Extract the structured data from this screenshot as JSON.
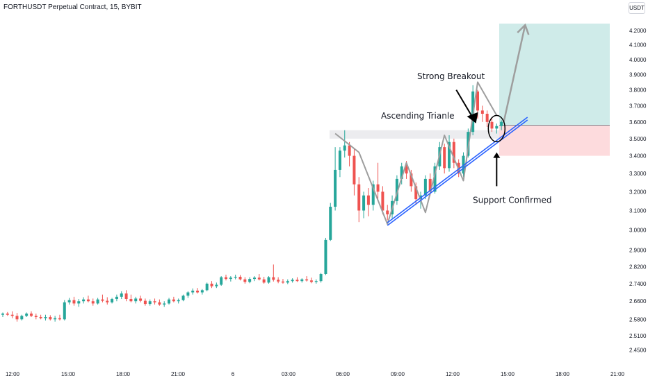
{
  "header": {
    "title": "FORTHUSDT Perpetual Contract, 15, BYBIT",
    "currency": "USDT"
  },
  "colors": {
    "up": "#26a69a",
    "down": "#ef5350",
    "triangle": "#9e9e9e",
    "trendline": "#2962ff",
    "target_zone": "#26a69a",
    "stop_zone": "#f23645",
    "resistance_zone": "#b2b5be"
  },
  "chart_data": {
    "type": "candlestick",
    "symbol": "FORTHUSDT",
    "timeframe": "15",
    "exchange": "BYBIT",
    "x_tick_labels": [
      "12:00",
      "15:00",
      "18:00",
      "21:00",
      "6",
      "03:00",
      "06:00",
      "09:00",
      "12:00",
      "15:00",
      "18:00",
      "21:00"
    ],
    "y_tick_labels": [
      "4.2000",
      "4.1000",
      "4.0000",
      "3.9000",
      "3.8000",
      "3.7000",
      "3.6000",
      "3.5000",
      "3.4000",
      "3.3000",
      "3.2000",
      "3.1000",
      "3.0000",
      "2.9000",
      "2.8200",
      "2.7400",
      "2.6600",
      "2.5800",
      "2.5100",
      "2.4500"
    ],
    "y_scale": "log",
    "ylim": [
      2.42,
      4.28
    ],
    "candles": [
      {
        "o": 2.6,
        "h": 2.61,
        "l": 2.59,
        "c": 2.605
      },
      {
        "o": 2.605,
        "h": 2.612,
        "l": 2.595,
        "c": 2.6
      },
      {
        "o": 2.6,
        "h": 2.615,
        "l": 2.585,
        "c": 2.595
      },
      {
        "o": 2.595,
        "h": 2.608,
        "l": 2.57,
        "c": 2.58
      },
      {
        "o": 2.58,
        "h": 2.6,
        "l": 2.575,
        "c": 2.595
      },
      {
        "o": 2.595,
        "h": 2.61,
        "l": 2.59,
        "c": 2.605
      },
      {
        "o": 2.605,
        "h": 2.615,
        "l": 2.59,
        "c": 2.595
      },
      {
        "o": 2.595,
        "h": 2.605,
        "l": 2.58,
        "c": 2.59
      },
      {
        "o": 2.59,
        "h": 2.6,
        "l": 2.58,
        "c": 2.585
      },
      {
        "o": 2.585,
        "h": 2.6,
        "l": 2.575,
        "c": 2.59
      },
      {
        "o": 2.59,
        "h": 2.598,
        "l": 2.575,
        "c": 2.58
      },
      {
        "o": 2.58,
        "h": 2.595,
        "l": 2.57,
        "c": 2.585
      },
      {
        "o": 2.585,
        "h": 2.6,
        "l": 2.575,
        "c": 2.58
      },
      {
        "o": 2.58,
        "h": 2.665,
        "l": 2.575,
        "c": 2.655
      },
      {
        "o": 2.655,
        "h": 2.675,
        "l": 2.645,
        "c": 2.665
      },
      {
        "o": 2.665,
        "h": 2.68,
        "l": 2.64,
        "c": 2.65
      },
      {
        "o": 2.65,
        "h": 2.67,
        "l": 2.635,
        "c": 2.66
      },
      {
        "o": 2.66,
        "h": 2.678,
        "l": 2.65,
        "c": 2.668
      },
      {
        "o": 2.668,
        "h": 2.685,
        "l": 2.655,
        "c": 2.66
      },
      {
        "o": 2.66,
        "h": 2.672,
        "l": 2.64,
        "c": 2.65
      },
      {
        "o": 2.65,
        "h": 2.675,
        "l": 2.645,
        "c": 2.668
      },
      {
        "o": 2.668,
        "h": 2.69,
        "l": 2.655,
        "c": 2.662
      },
      {
        "o": 2.662,
        "h": 2.678,
        "l": 2.645,
        "c": 2.655
      },
      {
        "o": 2.655,
        "h": 2.675,
        "l": 2.65,
        "c": 2.67
      },
      {
        "o": 2.67,
        "h": 2.69,
        "l": 2.66,
        "c": 2.68
      },
      {
        "o": 2.68,
        "h": 2.705,
        "l": 2.67,
        "c": 2.695
      },
      {
        "o": 2.695,
        "h": 2.71,
        "l": 2.66,
        "c": 2.67
      },
      {
        "o": 2.67,
        "h": 2.69,
        "l": 2.655,
        "c": 2.66
      },
      {
        "o": 2.66,
        "h": 2.68,
        "l": 2.65,
        "c": 2.672
      },
      {
        "o": 2.672,
        "h": 2.685,
        "l": 2.655,
        "c": 2.662
      },
      {
        "o": 2.662,
        "h": 2.672,
        "l": 2.64,
        "c": 2.648
      },
      {
        "o": 2.648,
        "h": 2.668,
        "l": 2.64,
        "c": 2.66
      },
      {
        "o": 2.66,
        "h": 2.672,
        "l": 2.645,
        "c": 2.655
      },
      {
        "o": 2.655,
        "h": 2.668,
        "l": 2.64,
        "c": 2.645
      },
      {
        "o": 2.645,
        "h": 2.66,
        "l": 2.635,
        "c": 2.65
      },
      {
        "o": 2.65,
        "h": 2.675,
        "l": 2.645,
        "c": 2.668
      },
      {
        "o": 2.668,
        "h": 2.68,
        "l": 2.655,
        "c": 2.66
      },
      {
        "o": 2.66,
        "h": 2.672,
        "l": 2.65,
        "c": 2.665
      },
      {
        "o": 2.665,
        "h": 2.69,
        "l": 2.66,
        "c": 2.685
      },
      {
        "o": 2.685,
        "h": 2.705,
        "l": 2.675,
        "c": 2.7
      },
      {
        "o": 2.7,
        "h": 2.718,
        "l": 2.69,
        "c": 2.708
      },
      {
        "o": 2.708,
        "h": 2.72,
        "l": 2.695,
        "c": 2.7
      },
      {
        "o": 2.7,
        "h": 2.715,
        "l": 2.69,
        "c": 2.71
      },
      {
        "o": 2.71,
        "h": 2.745,
        "l": 2.705,
        "c": 2.74
      },
      {
        "o": 2.74,
        "h": 2.752,
        "l": 2.72,
        "c": 2.728
      },
      {
        "o": 2.728,
        "h": 2.745,
        "l": 2.72,
        "c": 2.735
      },
      {
        "o": 2.735,
        "h": 2.775,
        "l": 2.73,
        "c": 2.77
      },
      {
        "o": 2.77,
        "h": 2.782,
        "l": 2.755,
        "c": 2.762
      },
      {
        "o": 2.762,
        "h": 2.775,
        "l": 2.75,
        "c": 2.768
      },
      {
        "o": 2.768,
        "h": 2.782,
        "l": 2.76,
        "c": 2.772
      },
      {
        "o": 2.772,
        "h": 2.78,
        "l": 2.755,
        "c": 2.76
      },
      {
        "o": 2.76,
        "h": 2.77,
        "l": 2.74,
        "c": 2.748
      },
      {
        "o": 2.748,
        "h": 2.77,
        "l": 2.742,
        "c": 2.762
      },
      {
        "o": 2.762,
        "h": 2.775,
        "l": 2.752,
        "c": 2.768
      },
      {
        "o": 2.768,
        "h": 2.785,
        "l": 2.755,
        "c": 2.76
      },
      {
        "o": 2.76,
        "h": 2.772,
        "l": 2.74,
        "c": 2.745
      },
      {
        "o": 2.745,
        "h": 2.775,
        "l": 2.74,
        "c": 2.77
      },
      {
        "o": 2.77,
        "h": 2.83,
        "l": 2.75,
        "c": 2.758
      },
      {
        "o": 2.758,
        "h": 2.77,
        "l": 2.742,
        "c": 2.75
      },
      {
        "o": 2.75,
        "h": 2.762,
        "l": 2.74,
        "c": 2.745
      },
      {
        "o": 2.745,
        "h": 2.76,
        "l": 2.738,
        "c": 2.752
      },
      {
        "o": 2.752,
        "h": 2.765,
        "l": 2.745,
        "c": 2.758
      },
      {
        "o": 2.758,
        "h": 2.77,
        "l": 2.748,
        "c": 2.752
      },
      {
        "o": 2.752,
        "h": 2.765,
        "l": 2.745,
        "c": 2.76
      },
      {
        "o": 2.76,
        "h": 2.775,
        "l": 2.75,
        "c": 2.755
      },
      {
        "o": 2.755,
        "h": 2.768,
        "l": 2.742,
        "c": 2.748
      },
      {
        "o": 2.748,
        "h": 2.76,
        "l": 2.74,
        "c": 2.752
      },
      {
        "o": 2.752,
        "h": 2.79,
        "l": 2.745,
        "c": 2.785
      },
      {
        "o": 2.785,
        "h": 2.96,
        "l": 2.78,
        "c": 2.95
      },
      {
        "o": 2.95,
        "h": 3.14,
        "l": 2.945,
        "c": 3.12
      },
      {
        "o": 3.12,
        "h": 3.45,
        "l": 3.1,
        "c": 3.32
      },
      {
        "o": 3.32,
        "h": 3.45,
        "l": 3.28,
        "c": 3.43
      },
      {
        "o": 3.43,
        "h": 3.55,
        "l": 3.39,
        "c": 3.46
      },
      {
        "o": 3.46,
        "h": 3.48,
        "l": 3.34,
        "c": 3.4
      },
      {
        "o": 3.4,
        "h": 3.44,
        "l": 3.18,
        "c": 3.24
      },
      {
        "o": 3.24,
        "h": 3.28,
        "l": 3.04,
        "c": 3.1
      },
      {
        "o": 3.1,
        "h": 3.2,
        "l": 3.06,
        "c": 3.18
      },
      {
        "o": 3.18,
        "h": 3.22,
        "l": 3.07,
        "c": 3.13
      },
      {
        "o": 3.13,
        "h": 3.26,
        "l": 3.1,
        "c": 3.24
      },
      {
        "o": 3.24,
        "h": 3.36,
        "l": 3.16,
        "c": 3.2
      },
      {
        "o": 3.2,
        "h": 3.23,
        "l": 3.08,
        "c": 3.1
      },
      {
        "o": 3.1,
        "h": 3.13,
        "l": 3.05,
        "c": 3.08
      },
      {
        "o": 3.08,
        "h": 3.18,
        "l": 3.06,
        "c": 3.15
      },
      {
        "o": 3.15,
        "h": 3.29,
        "l": 3.13,
        "c": 3.27
      },
      {
        "o": 3.27,
        "h": 3.36,
        "l": 3.24,
        "c": 3.34
      },
      {
        "o": 3.34,
        "h": 3.37,
        "l": 3.27,
        "c": 3.3
      },
      {
        "o": 3.3,
        "h": 3.32,
        "l": 3.2,
        "c": 3.23
      },
      {
        "o": 3.23,
        "h": 3.25,
        "l": 3.13,
        "c": 3.16
      },
      {
        "o": 3.16,
        "h": 3.2,
        "l": 3.11,
        "c": 3.18
      },
      {
        "o": 3.18,
        "h": 3.29,
        "l": 3.16,
        "c": 3.27
      },
      {
        "o": 3.27,
        "h": 3.3,
        "l": 3.18,
        "c": 3.2
      },
      {
        "o": 3.2,
        "h": 3.36,
        "l": 3.19,
        "c": 3.34
      },
      {
        "o": 3.34,
        "h": 3.48,
        "l": 3.32,
        "c": 3.45
      },
      {
        "o": 3.45,
        "h": 3.47,
        "l": 3.3,
        "c": 3.33
      },
      {
        "o": 3.33,
        "h": 3.52,
        "l": 3.31,
        "c": 3.48
      },
      {
        "o": 3.48,
        "h": 3.5,
        "l": 3.33,
        "c": 3.36
      },
      {
        "o": 3.36,
        "h": 3.38,
        "l": 3.28,
        "c": 3.3
      },
      {
        "o": 3.3,
        "h": 3.42,
        "l": 3.28,
        "c": 3.4
      },
      {
        "o": 3.4,
        "h": 3.56,
        "l": 3.39,
        "c": 3.54
      },
      {
        "o": 3.54,
        "h": 3.83,
        "l": 3.52,
        "c": 3.79
      },
      {
        "o": 3.79,
        "h": 3.8,
        "l": 3.62,
        "c": 3.67
      },
      {
        "o": 3.67,
        "h": 3.7,
        "l": 3.6,
        "c": 3.65
      },
      {
        "o": 3.65,
        "h": 3.67,
        "l": 3.57,
        "c": 3.6
      },
      {
        "o": 3.6,
        "h": 3.62,
        "l": 3.54,
        "c": 3.56
      },
      {
        "o": 3.56,
        "h": 3.59,
        "l": 3.53,
        "c": 3.575
      },
      {
        "o": 3.575,
        "h": 3.61,
        "l": 3.55,
        "c": 3.6
      }
    ],
    "resistance_zone": {
      "from": 3.5,
      "to": 3.55
    },
    "target_zone": {
      "from": 3.58,
      "to": 4.25
    },
    "stop_zone": {
      "from": 3.4,
      "to": 3.58
    },
    "annotations": [
      {
        "text": "Strong Breakout"
      },
      {
        "text": "Ascending Trianle"
      },
      {
        "text": "Support Confirmed"
      }
    ]
  }
}
